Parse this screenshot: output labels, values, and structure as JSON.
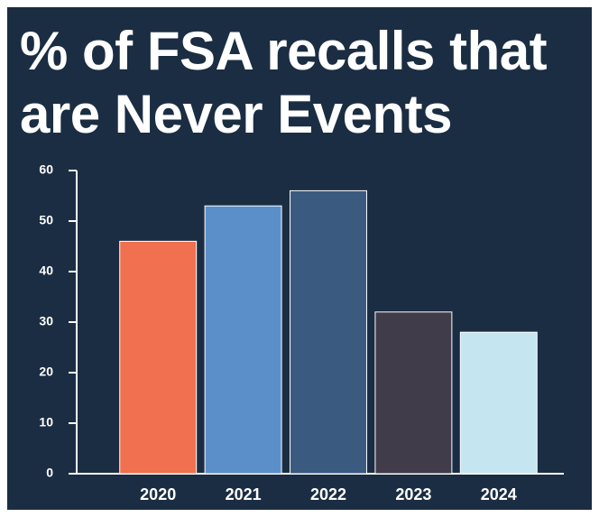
{
  "chart_data": {
    "type": "bar",
    "title": "% of FSA recalls that are Never Events",
    "categories": [
      "2020",
      "2021",
      "2022",
      "2023",
      "2024"
    ],
    "values": [
      46,
      53,
      56,
      32,
      28
    ],
    "colors": [
      "#f07050",
      "#5b8fc9",
      "#3a5a80",
      "#403c4a",
      "#c5e6f0"
    ],
    "ylim": [
      0,
      60
    ],
    "yticks": [
      0,
      10,
      20,
      30,
      40,
      50,
      60
    ],
    "grid": false
  }
}
